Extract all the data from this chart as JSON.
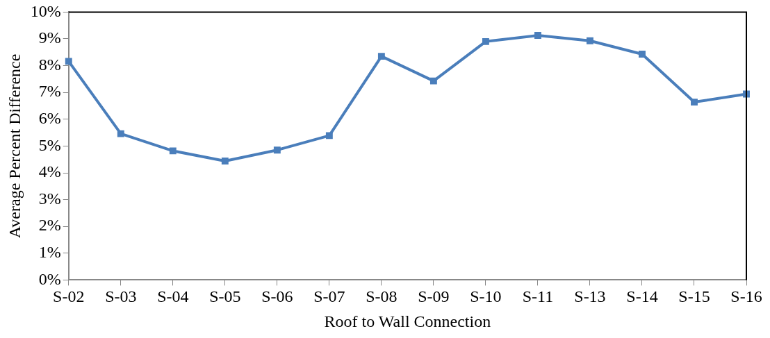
{
  "chart_data": {
    "type": "line",
    "xlabel": "Roof to Wall Connection",
    "ylabel": "Average Percent Difference",
    "categories": [
      "S-02",
      "S-03",
      "S-04",
      "S-05",
      "S-06",
      "S-07",
      "S-08",
      "S-09",
      "S-10",
      "S-11",
      "S-13",
      "S-14",
      "S-15",
      "S-16"
    ],
    "series": [
      {
        "color": "#4a7ebb",
        "values": [
          8.16,
          5.46,
          4.82,
          4.44,
          4.85,
          5.39,
          8.35,
          7.43,
          8.9,
          9.13,
          8.93,
          8.43,
          6.64,
          6.94
        ]
      }
    ],
    "ylim": [
      0,
      10
    ],
    "yticks": [
      {
        "value": 0,
        "label": "0%"
      },
      {
        "value": 1,
        "label": "1%"
      },
      {
        "value": 2,
        "label": "2%"
      },
      {
        "value": 3,
        "label": "3%"
      },
      {
        "value": 4,
        "label": "4%"
      },
      {
        "value": 5,
        "label": "5%"
      },
      {
        "value": 6,
        "label": "6%"
      },
      {
        "value": 7,
        "label": "7%"
      },
      {
        "value": 8,
        "label": "8%"
      },
      {
        "value": 9,
        "label": "9%"
      },
      {
        "value": 10,
        "label": "10%"
      }
    ],
    "grid": false,
    "legend": false,
    "marker": "square",
    "line_style": "solid"
  }
}
